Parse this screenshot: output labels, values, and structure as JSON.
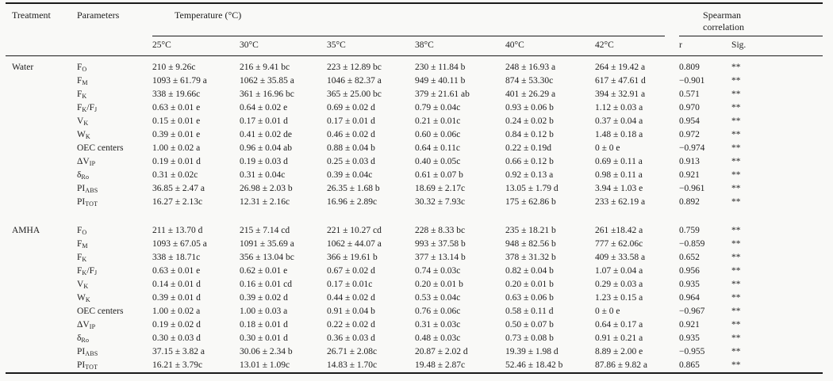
{
  "table": {
    "headers": {
      "treatment": "Treatment",
      "parameters": "Parameters",
      "temperature_group": "Temperature (°C)",
      "spearman_group": "Spearman correlation",
      "temperatures": [
        "25°C",
        "30°C",
        "35°C",
        "38°C",
        "40°C",
        "42°C"
      ],
      "r": "r",
      "sig": "Sig."
    },
    "groups": [
      {
        "treatment": "Water",
        "rows": [
          {
            "parameter": "F_{O}",
            "values": [
              "210 ± 9.26c",
              "216 ± 9.41 bc",
              "223 ± 12.89 bc",
              "230 ± 11.84 b",
              "248 ± 16.93 a",
              "264 ± 19.42 a"
            ],
            "r": "0.809",
            "sig": "**"
          },
          {
            "parameter": "F_{M}",
            "values": [
              "1093 ± 61.79 a",
              "1062 ± 35.85 a",
              "1046 ± 82.37 a",
              "949 ± 40.11 b",
              "874 ± 53.30c",
              "617 ± 47.61 d"
            ],
            "r": "−0.901",
            "sig": "**"
          },
          {
            "parameter": "F_{K}",
            "values": [
              "338 ± 19.66c",
              "361 ± 16.96 bc",
              "365 ± 25.00 bc",
              "379 ± 21.61 ab",
              "401 ± 26.29 a",
              "394 ± 32.91 a"
            ],
            "r": "0.571",
            "sig": "**"
          },
          {
            "parameter": "F_{K}/F_{J}",
            "values": [
              "0.63 ± 0.01 e",
              "0.64 ± 0.02 e",
              "0.69 ± 0.02 d",
              "0.79 ± 0.04c",
              "0.93 ± 0.06 b",
              "1.12 ± 0.03 a"
            ],
            "r": "0.970",
            "sig": "**"
          },
          {
            "parameter": "V_{K}",
            "values": [
              "0.15 ± 0.01 e",
              "0.17 ± 0.01 d",
              "0.17 ± 0.01 d",
              "0.21 ± 0.01c",
              "0.24 ± 0.02 b",
              "0.37 ± 0.04 a"
            ],
            "r": "0.954",
            "sig": "**"
          },
          {
            "parameter": "W_{K}",
            "values": [
              "0.39 ± 0.01 e",
              "0.41 ± 0.02 de",
              "0.46 ± 0.02 d",
              "0.60 ± 0.06c",
              "0.84 ± 0.12 b",
              "1.48 ± 0.18 a"
            ],
            "r": "0.972",
            "sig": "**"
          },
          {
            "parameter": "OEC centers",
            "values": [
              "1.00 ± 0.02 a",
              "0.96 ± 0.04 ab",
              "0.88 ± 0.04 b",
              "0.64 ± 0.11c",
              "0.22 ± 0.19d",
              "0 ± 0 e"
            ],
            "r": "−0.974",
            "sig": "**"
          },
          {
            "parameter": "ΔV_{IP}",
            "values": [
              "0.19 ± 0.01 d",
              "0.19 ± 0.03 d",
              "0.25 ± 0.03 d",
              "0.40 ± 0.05c",
              "0.66 ± 0.12 b",
              "0.69 ± 0.11 a"
            ],
            "r": "0.913",
            "sig": "**"
          },
          {
            "parameter": "δ_{Ro}",
            "values": [
              "0.31 ± 0.02c",
              "0.31 ± 0.04c",
              "0.39 ± 0.04c",
              "0.61 ± 0.07 b",
              "0.92 ± 0.13 a",
              "0.98 ± 0.11 a"
            ],
            "r": "0.921",
            "sig": "**"
          },
          {
            "parameter": "PI_{ABS}",
            "values": [
              "36.85 ± 2.47 a",
              "26.98 ± 2.03 b",
              "26.35 ± 1.68 b",
              "18.69 ± 2.17c",
              "13.05 ± 1.79 d",
              "3.94 ± 1.03 e"
            ],
            "r": "−0.961",
            "sig": "**"
          },
          {
            "parameter": "PI_{TOT}",
            "values": [
              "16.27 ± 2.13c",
              "12.31 ± 2.16c",
              "16.96 ± 2.89c",
              "30.32 ± 7.93c",
              "175 ± 62.86 b",
              "233 ± 62.19 a"
            ],
            "r": "0.892",
            "sig": "**"
          }
        ]
      },
      {
        "treatment": "AMHA",
        "rows": [
          {
            "parameter": "F_{O}",
            "values": [
              "211 ± 13.70 d",
              "215 ± 7.14 cd",
              "221 ± 10.27 cd",
              "228 ± 8.33 bc",
              "235 ± 18.21 b",
              "261 ±18.42 a"
            ],
            "r": "0.759",
            "sig": "**"
          },
          {
            "parameter": "F_{M}",
            "values": [
              "1093 ± 67.05 a",
              "1091 ± 35.69 a",
              "1062 ± 44.07 a",
              "993 ± 37.58 b",
              "948 ± 82.56 b",
              "777 ± 62.06c"
            ],
            "r": "−0.859",
            "sig": "**"
          },
          {
            "parameter": "F_{K}",
            "values": [
              "338 ± 18.71c",
              "356 ± 13.04 bc",
              "366 ± 19.61 b",
              "377 ± 13.14 b",
              "378 ± 31.32 b",
              "409 ± 33.58 a"
            ],
            "r": "0.652",
            "sig": "**"
          },
          {
            "parameter": "F_{K}/F_{J}",
            "values": [
              "0.63 ± 0.01 e",
              "0.62 ± 0.01 e",
              "0.67 ± 0.02 d",
              "0.74 ± 0.03c",
              "0.82 ± 0.04 b",
              "1.07 ± 0.04 a"
            ],
            "r": "0.956",
            "sig": "**"
          },
          {
            "parameter": "V_{K}",
            "values": [
              "0.14 ± 0.01 d",
              "0.16 ± 0.01 cd",
              "0.17 ± 0.01c",
              "0.20 ± 0.01 b",
              "0.20 ± 0.01 b",
              "0.29 ± 0.03 a"
            ],
            "r": "0.935",
            "sig": "**"
          },
          {
            "parameter": "W_{K}",
            "values": [
              "0.39 ± 0.01 d",
              "0.39 ± 0.02 d",
              "0.44 ± 0.02 d",
              "0.53 ± 0.04c",
              "0.63 ± 0.06 b",
              "1.23 ± 0.15 a"
            ],
            "r": "0.964",
            "sig": "**"
          },
          {
            "parameter": "OEC centers",
            "values": [
              "1.00 ± 0.02 a",
              "1.00 ± 0.03 a",
              "0.91 ± 0.04 b",
              "0.76 ± 0.06c",
              "0.58 ± 0.11 d",
              "0 ± 0 e"
            ],
            "r": "−0.967",
            "sig": "**"
          },
          {
            "parameter": "ΔV_{IP}",
            "values": [
              "0.19 ± 0.02 d",
              "0.18 ± 0.01 d",
              "0.22 ± 0.02 d",
              "0.31 ± 0.03c",
              "0.50 ± 0.07 b",
              "0.64 ± 0.17 a"
            ],
            "r": "0.921",
            "sig": "**"
          },
          {
            "parameter": "δ_{Ro}",
            "values": [
              "0.30 ± 0.03 d",
              "0.30 ± 0.01 d",
              "0.36 ± 0.03 d",
              "0.48 ± 0.03c",
              "0.73 ± 0.08 b",
              "0.91 ± 0.21 a"
            ],
            "r": "0.935",
            "sig": "**"
          },
          {
            "parameter": "PI_{ABS}",
            "values": [
              "37.15 ± 3.82 a",
              "30.06 ± 2.34 b",
              "26.71 ± 2.08c",
              "20.87 ± 2.02 d",
              "19.39 ± 1.98 d",
              "8.89 ± 2.00 e"
            ],
            "r": "−0.955",
            "sig": "**"
          },
          {
            "parameter": "PI_{TOT}",
            "values": [
              "16.21 ± 3.79c",
              "13.01 ± 1.09c",
              "14.83 ± 1.70c",
              "19.48 ± 2.87c",
              "52.46 ± 18.42 b",
              "87.86 ± 9.82 a"
            ],
            "r": "0.865",
            "sig": "**"
          }
        ]
      }
    ]
  }
}
